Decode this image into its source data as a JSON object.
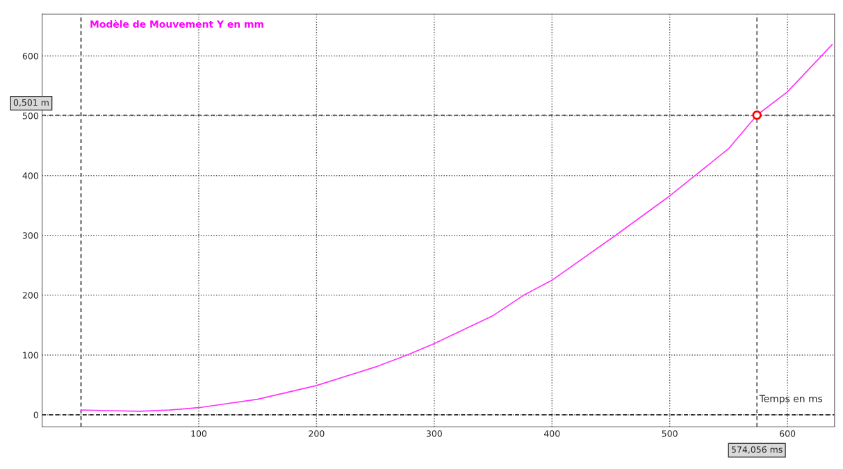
{
  "chart_data": {
    "type": "line",
    "title": "Modèle de Mouvement Y en mm",
    "xlabel": "Temps en ms",
    "xlim": [
      -33,
      640
    ],
    "ylim": [
      -20,
      670
    ],
    "xticks": [
      100,
      200,
      300,
      400,
      500,
      600
    ],
    "yticks": [
      0,
      100,
      200,
      300,
      400,
      500,
      600
    ],
    "grid": true,
    "series": [
      {
        "color": "#ff33ff",
        "marker": "none",
        "line_style": "solid",
        "x": [
          0,
          25,
          50,
          75,
          100,
          150,
          200,
          250,
          277,
          300,
          350,
          376,
          400,
          454,
          500,
          550,
          574.056,
          600,
          638
        ],
        "values": [
          8,
          7,
          6,
          8,
          12,
          26,
          49,
          80,
          100,
          119,
          166,
          200,
          225,
          300,
          366,
          445,
          501,
          540,
          619
        ]
      },
      {
        "type": "scatter",
        "color": "#ff0000",
        "marker": "circle",
        "x": [
          574.056
        ],
        "values": [
          501
        ]
      }
    ],
    "ref_lines": [
      {
        "axis": "x",
        "value": 574.056,
        "label": "574,056 ms",
        "color": "#333333",
        "line_style": "dashed"
      },
      {
        "axis": "y",
        "value": 501,
        "label": "0,501 m",
        "color": "#333333",
        "line_style": "dashed"
      },
      {
        "axis": "x",
        "value": 0,
        "color": "#000000",
        "line_style": "dashed"
      },
      {
        "axis": "y",
        "value": 0,
        "color": "#000000",
        "line_style": "dashed"
      }
    ]
  }
}
